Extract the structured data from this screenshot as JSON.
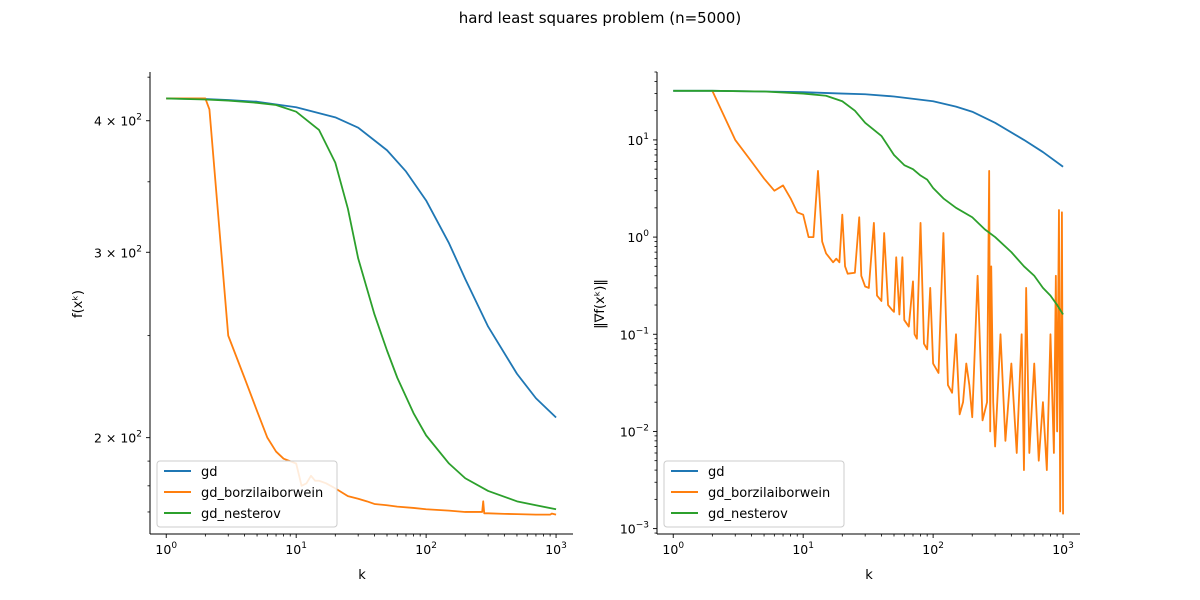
{
  "figure": {
    "title": "hard least squares problem (n=5000)"
  },
  "chart_data": [
    {
      "type": "line",
      "xlabel": "k",
      "ylabel": "f(xᵏ)",
      "xscale": "log",
      "yscale": "log",
      "xlim": [
        0.75,
        1350
      ],
      "ylim": [
        162,
        445
      ],
      "grid": false,
      "legend_position": "lower-left",
      "xticks": [
        {
          "value": 1,
          "base": "10",
          "exp": "0"
        },
        {
          "value": 10,
          "base": "10",
          "exp": "1"
        },
        {
          "value": 100,
          "base": "10",
          "exp": "2"
        },
        {
          "value": 1000,
          "base": "10",
          "exp": "3"
        }
      ],
      "yticks": [
        {
          "value": 200,
          "mantissa": "2",
          "base": "10",
          "exp": "2"
        },
        {
          "value": 300,
          "mantissa": "3",
          "base": "10",
          "exp": "2"
        },
        {
          "value": 400,
          "mantissa": "4",
          "base": "10",
          "exp": "2"
        }
      ],
      "series": [
        {
          "name": "gd",
          "color": "#1f77b4",
          "x": [
            1,
            2,
            3,
            5,
            10,
            20,
            30,
            50,
            70,
            100,
            150,
            200,
            300,
            500,
            700,
            1000
          ],
          "y": [
            420,
            419.5,
            418.5,
            417,
            412,
            403,
            394,
            375,
            358,
            336,
            306,
            283,
            255,
            230,
            218,
            209
          ]
        },
        {
          "name": "gd_borzilaiborwein",
          "color": "#ff7f0e",
          "x": [
            1,
            2,
            2.15,
            3,
            4,
            5,
            6,
            7,
            8,
            10,
            11,
            12,
            13,
            14,
            15,
            17,
            20,
            25,
            30,
            35,
            40,
            50,
            60,
            80,
            100,
            150,
            200,
            270,
            275,
            280,
            300,
            400,
            500,
            700,
            900,
            930,
            1000
          ],
          "y": [
            420,
            420,
            410,
            250,
            228,
            212,
            200,
            194,
            191,
            189,
            180,
            181,
            184,
            182,
            182,
            181,
            179,
            176,
            175,
            174,
            173,
            172.5,
            172,
            171.5,
            171,
            170.5,
            170,
            170,
            174,
            169.5,
            169.5,
            169.3,
            169.2,
            169,
            169,
            169.4,
            169
          ]
        },
        {
          "name": "gd_nesterov",
          "color": "#2ca02c",
          "x": [
            1,
            2,
            3,
            5,
            7,
            10,
            15,
            20,
            25,
            30,
            40,
            50,
            60,
            80,
            100,
            150,
            200,
            300,
            500,
            700,
            1000
          ],
          "y": [
            420,
            419,
            418,
            416,
            414,
            408,
            392,
            365,
            330,
            296,
            262,
            242,
            228,
            211,
            201,
            189,
            183,
            178,
            174,
            172.5,
            171
          ]
        }
      ]
    },
    {
      "type": "line",
      "xlabel": "k",
      "ylabel": "‖∇f(xᵏ)‖",
      "xscale": "log",
      "yscale": "log",
      "xlim": [
        0.75,
        1350
      ],
      "ylim": [
        0.00088,
        50
      ],
      "grid": false,
      "legend_position": "lower-left",
      "xticks": [
        {
          "value": 1,
          "base": "10",
          "exp": "0"
        },
        {
          "value": 10,
          "base": "10",
          "exp": "1"
        },
        {
          "value": 100,
          "base": "10",
          "exp": "2"
        },
        {
          "value": 1000,
          "base": "10",
          "exp": "3"
        }
      ],
      "yticks": [
        {
          "value": 0.001,
          "base": "10",
          "exp": "−3"
        },
        {
          "value": 0.01,
          "base": "10",
          "exp": "−2"
        },
        {
          "value": 0.1,
          "base": "10",
          "exp": "−1"
        },
        {
          "value": 1,
          "base": "10",
          "exp": "0"
        },
        {
          "value": 10,
          "base": "10",
          "exp": "1"
        }
      ],
      "series": [
        {
          "name": "gd",
          "color": "#1f77b4",
          "x": [
            1,
            2,
            5,
            10,
            20,
            30,
            50,
            100,
            150,
            200,
            300,
            500,
            700,
            1000
          ],
          "y": [
            32,
            32,
            31.5,
            31,
            30,
            29.5,
            28,
            25,
            22,
            19.5,
            15,
            10,
            7.5,
            5.3
          ]
        },
        {
          "name": "gd_borzilaiborwein",
          "color": "#ff7f0e",
          "x": [
            2,
            3,
            4,
            5,
            6,
            7,
            8,
            9,
            10,
            11,
            12,
            13,
            14,
            15,
            17,
            18,
            19,
            20,
            21,
            22,
            25,
            27,
            28,
            30,
            32,
            35,
            37,
            40,
            42,
            45,
            48,
            50,
            52,
            55,
            58,
            60,
            65,
            70,
            72,
            75,
            80,
            85,
            90,
            95,
            100,
            110,
            120,
            130,
            140,
            150,
            160,
            170,
            180,
            190,
            200,
            220,
            240,
            260,
            270,
            275,
            280,
            290,
            300,
            330,
            360,
            400,
            440,
            480,
            500,
            520,
            550,
            600,
            650,
            700,
            750,
            800,
            850,
            880,
            900,
            930,
            950,
            980,
            1000
          ],
          "y": [
            32,
            10,
            6,
            4,
            3,
            3.4,
            2.5,
            1.8,
            1.7,
            1.0,
            1.0,
            4.8,
            0.9,
            0.68,
            0.55,
            0.6,
            0.55,
            1.7,
            0.5,
            0.42,
            0.43,
            1.6,
            0.4,
            0.31,
            0.3,
            1.4,
            0.25,
            0.22,
            1.1,
            0.2,
            0.18,
            0.17,
            0.62,
            0.16,
            0.62,
            0.14,
            0.12,
            0.35,
            0.1,
            0.09,
            1.4,
            0.08,
            0.07,
            0.3,
            0.05,
            0.04,
            1.1,
            0.03,
            0.025,
            0.1,
            0.015,
            0.02,
            0.05,
            0.03,
            0.014,
            0.4,
            0.013,
            0.02,
            4.8,
            0.01,
            0.5,
            0.02,
            0.007,
            0.1,
            0.008,
            0.05,
            0.006,
            0.1,
            0.004,
            0.3,
            0.006,
            0.05,
            0.005,
            0.02,
            0.004,
            0.1,
            0.006,
            0.4,
            0.01,
            1.9,
            0.0015,
            1.8,
            0.0014
          ]
        },
        {
          "name": "gd_nesterov",
          "color": "#2ca02c",
          "x": [
            1,
            2,
            5,
            10,
            15,
            20,
            25,
            30,
            40,
            50,
            60,
            70,
            80,
            90,
            100,
            120,
            150,
            200,
            250,
            300,
            400,
            500,
            600,
            700,
            800,
            900,
            1000
          ],
          "y": [
            32,
            32,
            31.5,
            30,
            28.5,
            25,
            20,
            15,
            11,
            7,
            5.5,
            5,
            4.3,
            3.9,
            3.2,
            2.5,
            2.0,
            1.6,
            1.2,
            1.0,
            0.7,
            0.5,
            0.4,
            0.3,
            0.25,
            0.2,
            0.16
          ]
        }
      ]
    }
  ]
}
